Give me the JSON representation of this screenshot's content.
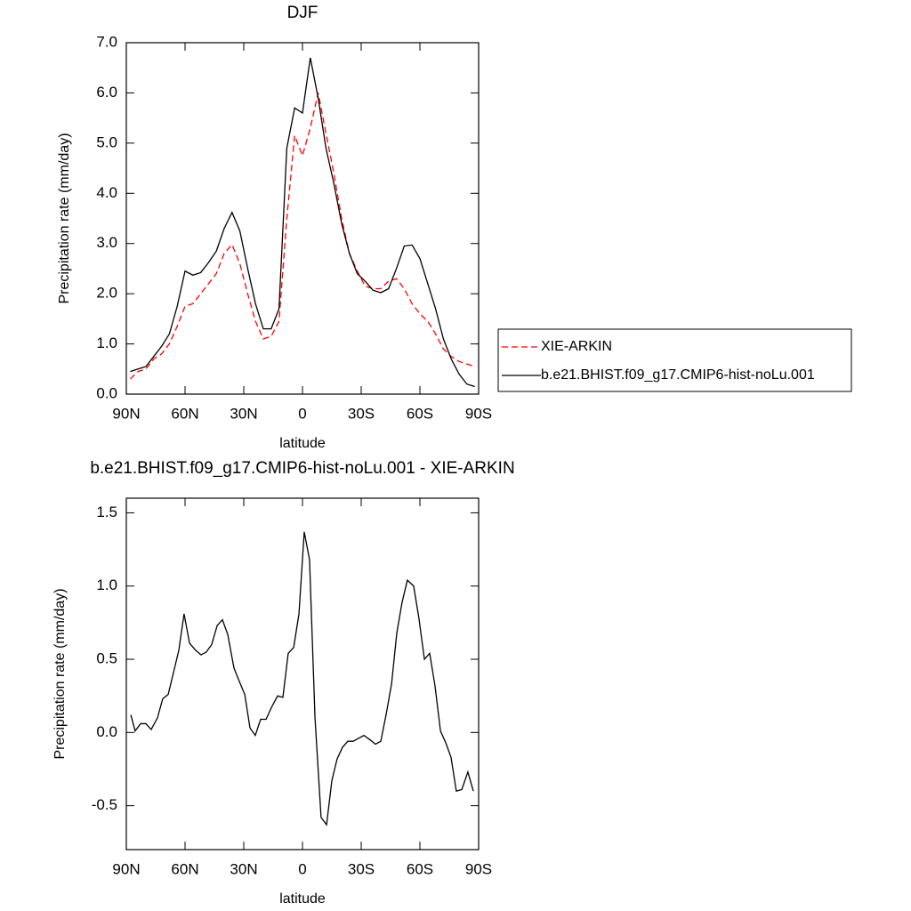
{
  "chart_data": [
    {
      "type": "line",
      "title": "DJF",
      "xlabel": "latitude",
      "ylabel": "Precipitation rate (mm/day)",
      "x": [
        88,
        84,
        80,
        76,
        72,
        68,
        64,
        60,
        56,
        52,
        48,
        44,
        40,
        36,
        32,
        28,
        24,
        20,
        16,
        12,
        8,
        4,
        0,
        -4,
        -8,
        -12,
        -16,
        -20,
        -24,
        -28,
        -32,
        -36,
        -40,
        -44,
        -48,
        -52,
        -56,
        -60,
        -64,
        -68,
        -72,
        -76,
        -80,
        -84,
        -88
      ],
      "series": [
        {
          "name": "XIE-ARKIN",
          "color": "#ff0000",
          "linestyle": "dashed",
          "values": [
            0.3,
            0.45,
            0.5,
            0.7,
            0.8,
            1.0,
            1.35,
            1.75,
            1.8,
            2.0,
            2.2,
            2.4,
            2.8,
            2.98,
            2.6,
            2.0,
            1.45,
            1.1,
            1.15,
            1.45,
            3.5,
            5.15,
            4.75,
            5.3,
            6.0,
            5.2,
            4.4,
            3.5,
            2.8,
            2.45,
            2.15,
            2.1,
            2.1,
            2.25,
            2.3,
            2.1,
            1.8,
            1.6,
            1.45,
            1.2,
            0.9,
            0.75,
            0.65,
            0.6,
            0.55
          ]
        },
        {
          "name": "b.e21.BHIST.f09_g17.CMIP6-hist-noLu.001",
          "color": "#000000",
          "linestyle": "solid",
          "values": [
            0.45,
            0.5,
            0.55,
            0.75,
            0.95,
            1.2,
            1.75,
            2.45,
            2.37,
            2.42,
            2.62,
            2.85,
            3.3,
            3.62,
            3.25,
            2.5,
            1.8,
            1.3,
            1.3,
            1.7,
            4.9,
            5.7,
            5.6,
            6.7,
            5.9,
            4.9,
            4.2,
            3.4,
            2.8,
            2.4,
            2.25,
            2.07,
            2.02,
            2.1,
            2.5,
            2.95,
            2.97,
            2.7,
            2.2,
            1.7,
            1.1,
            0.7,
            0.4,
            0.2,
            0.15
          ]
        }
      ],
      "xlim": [
        90,
        -90
      ],
      "xticks": [
        {
          "value": 90,
          "label": "90N"
        },
        {
          "value": 60,
          "label": "60N"
        },
        {
          "value": 30,
          "label": "30N"
        },
        0,
        {
          "value": -30,
          "label": "30S"
        },
        {
          "value": -60,
          "label": "60S"
        },
        {
          "value": -90,
          "label": "90S"
        }
      ],
      "ylim": [
        0,
        7
      ],
      "yticks": [
        {
          "value": 0,
          "label": "0.0"
        },
        {
          "value": 1,
          "label": "1.0"
        },
        {
          "value": 2,
          "label": "2.0"
        },
        {
          "value": 3,
          "label": "3.0"
        },
        {
          "value": 4,
          "label": "4.0"
        },
        {
          "value": 5,
          "label": "5.0"
        },
        {
          "value": 6,
          "label": "6.0"
        },
        {
          "value": 7,
          "label": "7.0"
        }
      ],
      "legend": "right"
    },
    {
      "type": "line",
      "title": "b.e21.BHIST.f09_g17.CMIP6-hist-noLu.001 - XIE-ARKIN",
      "xlabel": "latitude",
      "ylabel": "Precipitation rate (mm/day)",
      "x": [
        87.7,
        85.5,
        82.7,
        80,
        77.3,
        74.1,
        71.4,
        68.6,
        65.9,
        63.2,
        60.5,
        57.7,
        54.5,
        51.8,
        49.1,
        46.4,
        43.6,
        40.9,
        38.2,
        35,
        32.3,
        29.5,
        26.8,
        24.1,
        21.4,
        18.6,
        15.9,
        12.7,
        10,
        7.3,
        4.5,
        1.8,
        -0.9,
        -3.6,
        -6.4,
        -9.5,
        -12.3,
        -15,
        -17.7,
        -20.5,
        -23.2,
        -25.9,
        -28.6,
        -31.4,
        -34.5,
        -37.3,
        -40,
        -42.7,
        -45.5,
        -48.2,
        -50.9,
        -53.6,
        -56.8,
        -59.5,
        -62.3,
        -65,
        -67.7,
        -70.5,
        -73.2,
        -75.9,
        -78.6,
        -81.4,
        -84.5,
        -87.3
      ],
      "color": "#000000",
      "values": [
        0.12,
        0.01,
        0.06,
        0.06,
        0.02,
        0.1,
        0.23,
        0.26,
        0.41,
        0.56,
        0.81,
        0.61,
        0.56,
        0.53,
        0.55,
        0.6,
        0.73,
        0.77,
        0.67,
        0.44,
        0.35,
        0.26,
        0.03,
        -0.02,
        0.09,
        0.09,
        0.17,
        0.25,
        0.24,
        0.54,
        0.58,
        0.81,
        1.37,
        1.18,
        0.1,
        -0.58,
        -0.63,
        -0.33,
        -0.18,
        -0.1,
        -0.06,
        -0.06,
        -0.04,
        -0.02,
        -0.05,
        -0.08,
        -0.06,
        0.12,
        0.33,
        0.68,
        0.89,
        1.04,
        1.0,
        0.78,
        0.5,
        0.54,
        0.32,
        0.01,
        -0.07,
        -0.17,
        -0.4,
        -0.39,
        -0.27,
        -0.4
      ],
      "xlim": [
        90,
        -90
      ],
      "xticks": [
        {
          "value": 90,
          "label": "90N"
        },
        {
          "value": 60,
          "label": "60N"
        },
        {
          "value": 30,
          "label": "30N"
        },
        0,
        {
          "value": -30,
          "label": "30S"
        },
        {
          "value": -60,
          "label": "60S"
        },
        {
          "value": -90,
          "label": "90S"
        }
      ],
      "ylim": [
        -0.8,
        1.6
      ],
      "yticks": [
        -0.5,
        {
          "value": 0,
          "label": "0.0"
        },
        0.5,
        {
          "value": 1,
          "label": "1.0"
        },
        1.5
      ]
    }
  ]
}
